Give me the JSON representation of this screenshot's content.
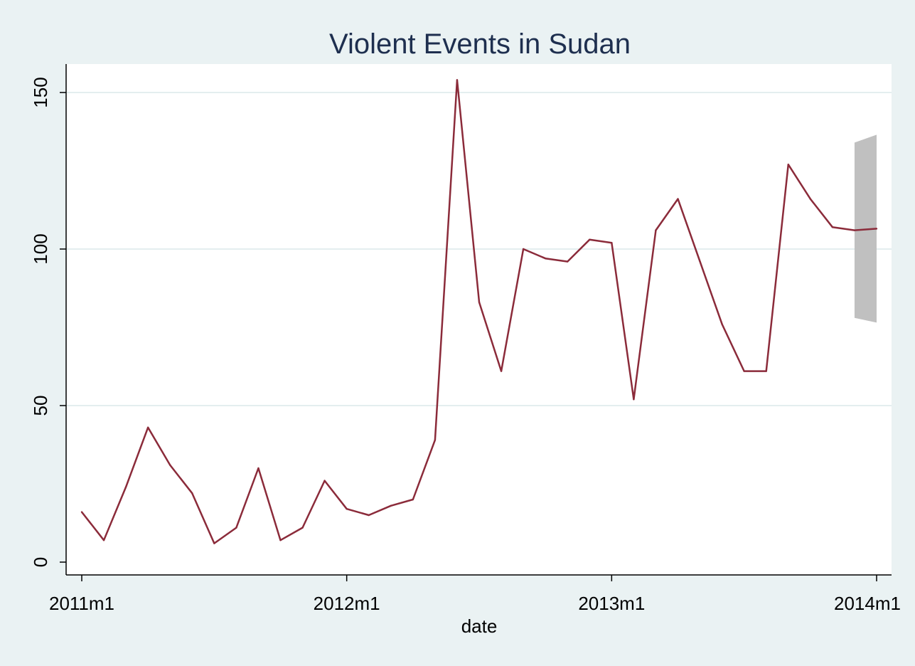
{
  "chart_data": {
    "type": "line",
    "title": "Violent Events in Sudan",
    "xlabel": "date",
    "ylabel": "",
    "x_ticks": [
      {
        "label": "2011m1",
        "month_index": 0
      },
      {
        "label": "2012m1",
        "month_index": 12
      },
      {
        "label": "2013m1",
        "month_index": 24
      },
      {
        "label": "2014m1",
        "month_index": 36
      }
    ],
    "y_ticks": [
      0,
      50,
      100,
      150
    ],
    "xlim": [
      "2011m1",
      "2014m1"
    ],
    "ylim": [
      -3,
      160
    ],
    "grid": "horizontal",
    "legend": "none",
    "line_color": "#8b2b3a",
    "band_color": "#c0c0c0",
    "background": "#eaf2f3",
    "plot_background": "#ffffff",
    "series": [
      {
        "x": [
          "2011m1",
          "2011m2",
          "2011m3",
          "2011m4",
          "2011m5",
          "2011m6",
          "2011m7",
          "2011m8",
          "2011m9",
          "2011m10",
          "2011m11",
          "2011m12",
          "2012m1",
          "2012m2",
          "2012m3",
          "2012m4",
          "2012m5",
          "2012m6",
          "2012m7",
          "2012m8",
          "2012m9",
          "2012m10",
          "2012m11",
          "2012m12",
          "2013m1",
          "2013m2",
          "2013m3",
          "2013m4",
          "2013m5",
          "2013m6",
          "2013m7",
          "2013m8",
          "2013m9",
          "2013m10",
          "2013m11",
          "2013m12",
          "2014m1"
        ],
        "values": [
          16,
          7,
          24,
          43,
          31,
          22,
          6,
          11,
          30,
          7,
          11,
          26,
          17,
          15,
          18,
          20,
          39,
          154,
          83,
          61,
          100,
          97,
          96,
          103,
          102,
          52,
          106,
          116,
          96,
          76,
          61,
          61,
          127,
          116,
          107,
          106,
          106.5
        ]
      }
    ],
    "confidence_band": {
      "x": [
        "2013m12",
        "2014m1"
      ],
      "upper": [
        134,
        136.5
      ],
      "lower": [
        78,
        76.5
      ]
    }
  }
}
